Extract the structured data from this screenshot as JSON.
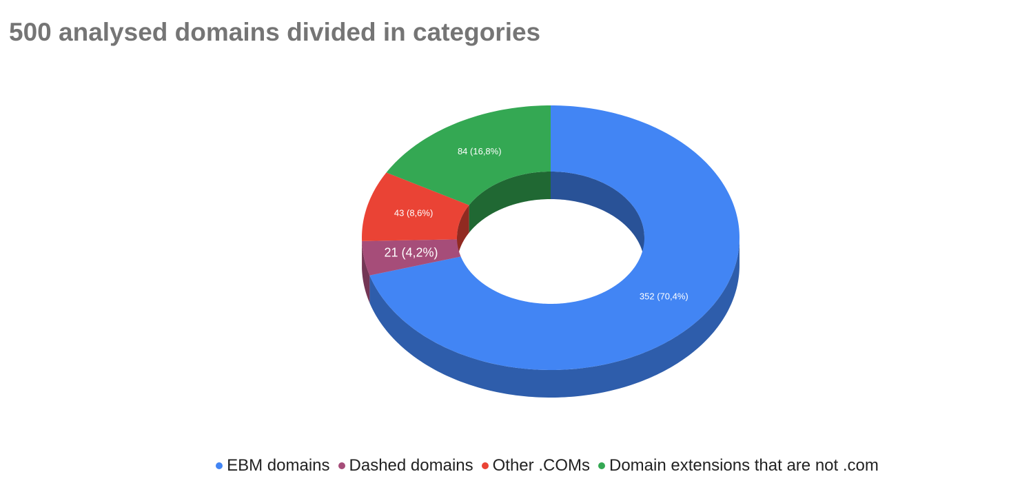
{
  "chart_data": {
    "type": "donut3d",
    "title": "500 analysed domains divided in categories",
    "categories": [
      "EBM domains",
      "Dashed domains",
      "Other .COMs",
      "Domain extensions that are not .com"
    ],
    "values": [
      352,
      21,
      43,
      84
    ],
    "value_labels": [
      "352 (70,4%)",
      "21 (4,2%)",
      "43 (8,6%)",
      "84 (16,8%)"
    ],
    "colors": [
      "#4285f4",
      "#a64d79",
      "#ea4335",
      "#34a853"
    ],
    "legend": "bottom"
  }
}
